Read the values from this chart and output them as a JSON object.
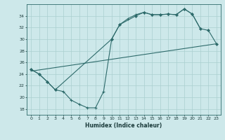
{
  "xlabel": "Humidex (Indice chaleur)",
  "xlim": [
    -0.5,
    23.5
  ],
  "ylim": [
    17.0,
    36.0
  ],
  "xticks": [
    0,
    1,
    2,
    3,
    4,
    5,
    6,
    7,
    8,
    9,
    10,
    11,
    12,
    13,
    14,
    15,
    16,
    17,
    18,
    19,
    20,
    21,
    22,
    23
  ],
  "yticks": [
    18,
    20,
    22,
    24,
    26,
    28,
    30,
    32,
    34
  ],
  "bg_color": "#cde8ea",
  "grid_color": "#aacfcf",
  "line_color": "#2e6b6b",
  "line1_x": [
    0,
    1,
    2,
    3,
    4,
    5,
    6,
    7,
    8,
    9,
    10,
    11,
    12,
    13,
    14,
    15,
    16,
    17,
    18,
    19,
    20,
    21
  ],
  "line1_y": [
    24.8,
    24.0,
    22.7,
    21.3,
    21.0,
    19.5,
    18.8,
    18.2,
    18.2,
    21.0,
    30.0,
    32.5,
    33.5,
    34.2,
    34.6,
    34.2,
    34.2,
    34.3,
    34.2,
    35.2,
    34.3,
    31.8
  ],
  "line2_x": [
    0,
    1,
    2,
    3,
    10,
    11,
    13,
    14,
    15,
    16,
    17,
    18,
    19,
    20,
    21,
    22,
    23
  ],
  "line2_y": [
    24.8,
    24.0,
    22.7,
    21.3,
    30.0,
    32.5,
    34.0,
    34.6,
    34.2,
    34.2,
    34.3,
    34.2,
    35.2,
    34.3,
    31.8,
    31.5,
    29.2
  ],
  "line3_x": [
    0,
    23
  ],
  "line3_y": [
    24.5,
    29.2
  ]
}
